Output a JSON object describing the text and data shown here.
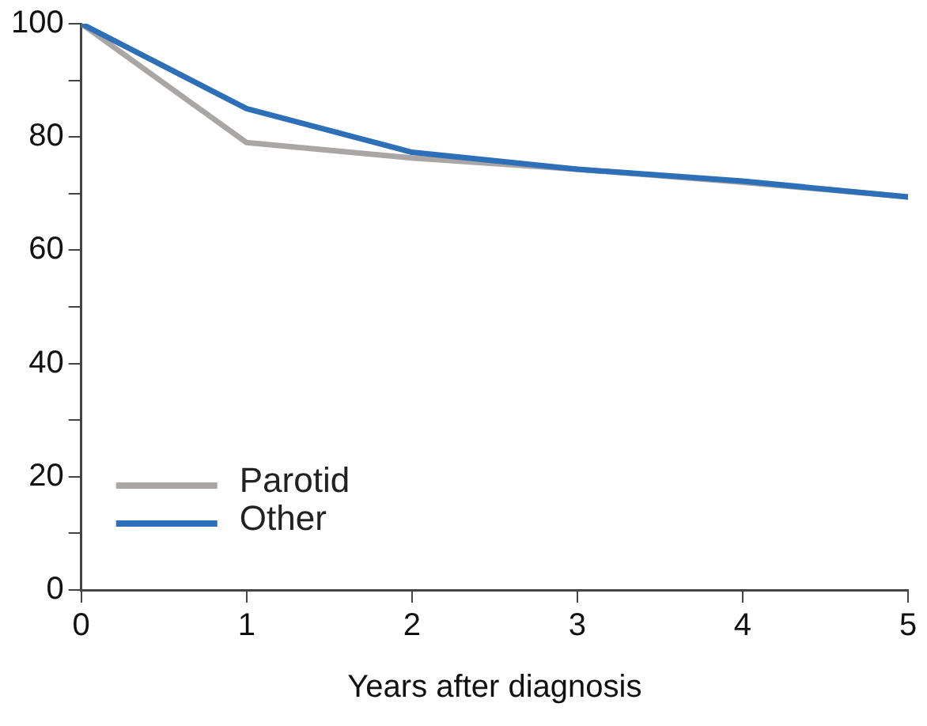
{
  "chart_data": {
    "type": "line",
    "xlabel": "Years after diagnosis",
    "x": [
      0,
      1,
      2,
      3,
      4,
      5
    ],
    "series": [
      {
        "name": "Parotid",
        "color": "#aaa6a5",
        "values": [
          100,
          79,
          76.3,
          74.3,
          72,
          69.4
        ]
      },
      {
        "name": "Other",
        "color": "#2e70b8",
        "values": [
          100,
          85,
          77.3,
          74.3,
          72.2,
          69.4
        ]
      }
    ],
    "xlim": [
      0,
      5
    ],
    "xticks": [
      0,
      1,
      2,
      3,
      4,
      5
    ],
    "ylim": [
      0,
      100
    ],
    "yticks": [
      0,
      {
        "value": 10,
        "label": null
      },
      20,
      {
        "value": 30,
        "label": null
      },
      40,
      {
        "value": 50,
        "label": null
      },
      60,
      {
        "value": 70,
        "label": null
      },
      80,
      {
        "value": 90,
        "label": null
      },
      100
    ],
    "grid": false,
    "legend": "bottom left",
    "marker": "none",
    "line_style": "solid"
  }
}
